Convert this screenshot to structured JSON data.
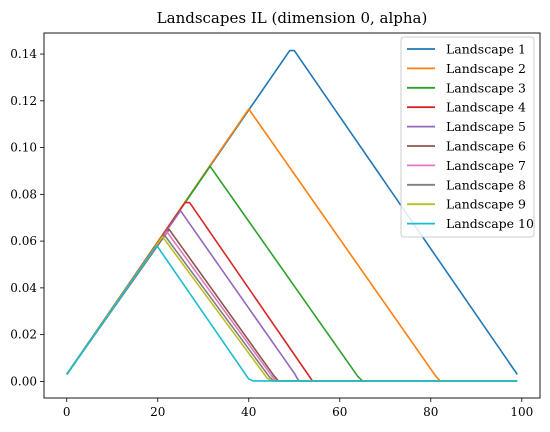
{
  "chart_data": {
    "type": "line",
    "title": "Landscapes IL (dimension 0, alpha)",
    "xlabel": "",
    "ylabel": "",
    "xlim": [
      -5,
      104
    ],
    "ylim": [
      -0.0071,
      0.149
    ],
    "xticks": [
      0,
      20,
      40,
      60,
      80,
      100
    ],
    "yticks": [
      0.0,
      0.02,
      0.04,
      0.06,
      0.08,
      0.1,
      0.12,
      0.14
    ],
    "ytick_labels": [
      "0.00",
      "0.02",
      "0.04",
      "0.06",
      "0.08",
      "0.10",
      "0.12",
      "0.14"
    ],
    "grid": false,
    "legend_position": "top-right",
    "series": [
      {
        "name": "Landscape 1",
        "color": "#1f77b4",
        "x": [
          0,
          49,
          50,
          99
        ],
        "y": [
          0.003,
          0.1415,
          0.1415,
          0.003
        ]
      },
      {
        "name": "Landscape 2",
        "color": "#ff7f0e",
        "x": [
          0,
          40,
          81,
          82,
          99
        ],
        "y": [
          0.003,
          0.1165,
          0.0025,
          0.0002,
          0.0002
        ]
      },
      {
        "name": "Landscape 3",
        "color": "#2ca02c",
        "x": [
          0,
          31.5,
          64,
          65,
          99
        ],
        "y": [
          0.003,
          0.092,
          0.002,
          0.0002,
          0.0002
        ]
      },
      {
        "name": "Landscape 4",
        "color": "#d62728",
        "x": [
          0,
          26,
          27,
          53,
          54,
          99
        ],
        "y": [
          0.003,
          0.0765,
          0.0765,
          0.003,
          0.0002,
          0.0002
        ]
      },
      {
        "name": "Landscape 5",
        "color": "#9467bd",
        "x": [
          0,
          25,
          50,
          51,
          99
        ],
        "y": [
          0.003,
          0.073,
          0.0035,
          0.0002,
          0.0002
        ]
      },
      {
        "name": "Landscape 6",
        "color": "#8c564b",
        "x": [
          0,
          22.5,
          45.5,
          46.5,
          99
        ],
        "y": [
          0.003,
          0.065,
          0.0025,
          0.0002,
          0.0002
        ]
      },
      {
        "name": "Landscape 7",
        "color": "#e377c2",
        "x": [
          0,
          22,
          45,
          46,
          99
        ],
        "y": [
          0.003,
          0.064,
          0.0025,
          0.0002,
          0.0002
        ]
      },
      {
        "name": "Landscape 8",
        "color": "#7f7f7f",
        "x": [
          0,
          21.5,
          44.5,
          45.5,
          99
        ],
        "y": [
          0.003,
          0.0625,
          0.002,
          0.0002,
          0.0002
        ]
      },
      {
        "name": "Landscape 9",
        "color": "#bcbd22",
        "x": [
          0,
          21,
          44,
          45,
          99
        ],
        "y": [
          0.003,
          0.062,
          0.0015,
          0.0002,
          0.0002
        ]
      },
      {
        "name": "Landscape 10",
        "color": "#17becf",
        "x": [
          0,
          19.5,
          20,
          40,
          41,
          99
        ],
        "y": [
          0.003,
          0.0575,
          0.0575,
          0.001,
          0.0002,
          0.0002
        ]
      }
    ]
  }
}
